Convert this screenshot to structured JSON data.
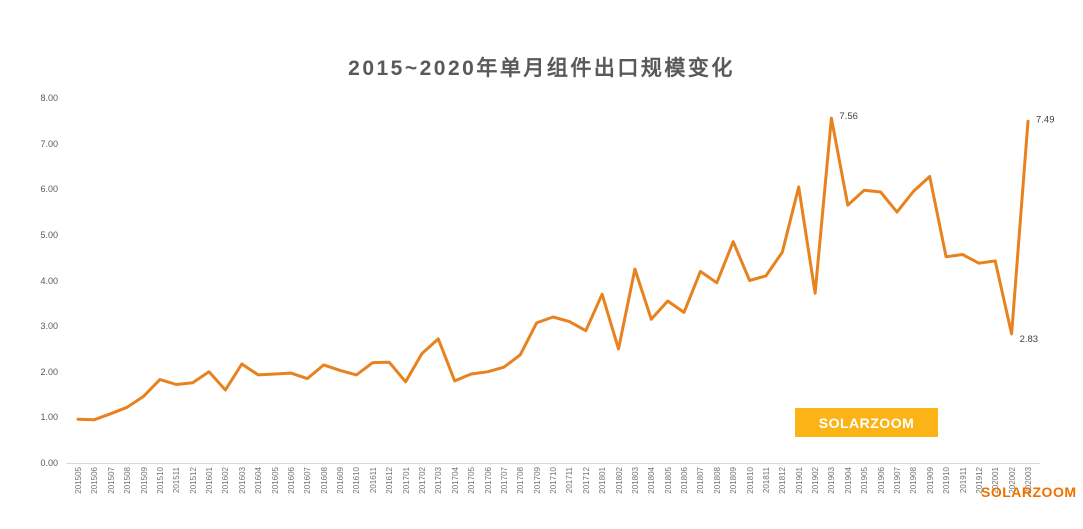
{
  "title": "2015~2020年单月组件出口规模变化",
  "badge": {
    "label": "SOLARZOOM"
  },
  "watermark": {
    "label": "SOLARZOOM"
  },
  "colors": {
    "line": "#E8821E",
    "badge_bg": "#FCB316",
    "badge_text": "#FFFFFF",
    "watermark": "#ED7100",
    "title_text": "#595959",
    "axis_text": "#737373",
    "axis_line": "#D9D9D9",
    "data_label": "#3F3F3F"
  },
  "chart_data": {
    "type": "line",
    "title": "2015~2020年单月组件出口规模变化",
    "xlabel": "",
    "ylabel": "",
    "ylim": [
      0,
      8
    ],
    "grid": false,
    "legend": "none",
    "ytick_labels": [
      "0.00",
      "1.00",
      "2.00",
      "3.00",
      "4.00",
      "5.00",
      "6.00",
      "7.00",
      "8.00"
    ],
    "x": [
      "201505",
      "201506",
      "201507",
      "201508",
      "201509",
      "201510",
      "201511",
      "201512",
      "201601",
      "201602",
      "201603",
      "201604",
      "201605",
      "201606",
      "201607",
      "201608",
      "201609",
      "201610",
      "201611",
      "201612",
      "201701",
      "201702",
      "201703",
      "201704",
      "201705",
      "201706",
      "201707",
      "201708",
      "201709",
      "201710",
      "201711",
      "201712",
      "201801",
      "201802",
      "201803",
      "201804",
      "201805",
      "201806",
      "201807",
      "201808",
      "201809",
      "201810",
      "201811",
      "201812",
      "201901",
      "201902",
      "201903",
      "201904",
      "201905",
      "201906",
      "201907",
      "201908",
      "201909",
      "201910",
      "201911",
      "201912",
      "202001",
      "202002",
      "202003"
    ],
    "values": [
      0.96,
      0.95,
      1.08,
      1.22,
      1.46,
      1.83,
      1.72,
      1.76,
      2.0,
      1.6,
      2.17,
      1.93,
      1.95,
      1.97,
      1.85,
      2.15,
      2.03,
      1.93,
      2.2,
      2.21,
      1.78,
      2.4,
      2.72,
      1.8,
      1.95,
      2.0,
      2.1,
      2.37,
      3.07,
      3.2,
      3.1,
      2.9,
      3.7,
      2.5,
      4.25,
      3.15,
      3.55,
      3.3,
      4.2,
      3.95,
      4.85,
      4.0,
      4.1,
      4.62,
      6.05,
      3.72,
      7.56,
      5.65,
      5.98,
      5.94,
      5.5,
      5.95,
      6.28,
      4.52,
      4.57,
      4.38,
      4.43,
      2.83,
      7.49
    ],
    "labeled_points": [
      {
        "x": "201903",
        "text": "7.56"
      },
      {
        "x": "202002",
        "text": "2.83"
      },
      {
        "x": "202003",
        "text": "7.49"
      }
    ]
  }
}
